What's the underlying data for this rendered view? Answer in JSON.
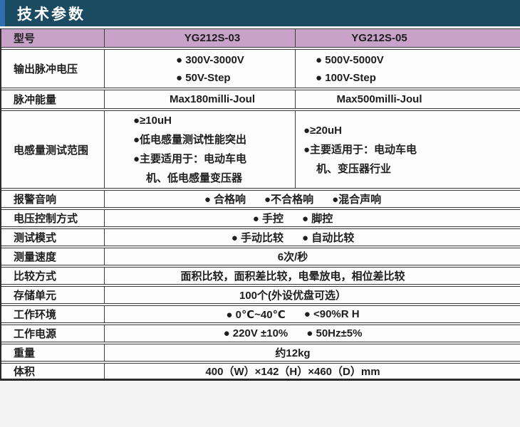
{
  "title": "技术参数",
  "colors": {
    "band": "#1b4b61",
    "accent_stripe": "#2f6fad",
    "model_row_bg": "#c8a2c8",
    "rule": "#3e3e3e"
  },
  "table": {
    "header": {
      "label": "型号",
      "model_a": "YG212S-03",
      "model_b": "YG212S-05"
    },
    "rows": {
      "output_voltage": {
        "label": "输出脉冲电压",
        "a": [
          "● 300V-3000V",
          "● 50V-Step"
        ],
        "b": [
          "● 500V-5000V",
          "● 100V-Step"
        ]
      },
      "pulse_energy": {
        "label": "脉冲能量",
        "a": "Max180milli-Joul",
        "b": "Max500milli-Joul"
      },
      "inductance": {
        "label": "电感量测试范围",
        "a": [
          "●≥10uH",
          "●低电感量测试性能突出",
          "●主要适用于：电动车电",
          "机、低电感量变压器"
        ],
        "b": [
          "●≥20uH",
          "●主要适用于：电动车电",
          "机、变压器行业"
        ]
      },
      "alarm": {
        "label": "报警音响",
        "parts": [
          "● 合格响",
          "●不合格响",
          "●混合声响"
        ]
      },
      "voltage_control": {
        "label": "电压控制方式",
        "parts": [
          "● 手控",
          "● 脚控"
        ]
      },
      "test_mode": {
        "label": "测试模式",
        "parts": [
          "● 手动比较",
          "● 自动比较"
        ]
      },
      "speed": {
        "label": "测量速度",
        "value": "6次/秒"
      },
      "comparison": {
        "label": "比较方式",
        "value": "面积比较，面积差比较，电晕放电，相位差比较"
      },
      "storage": {
        "label": "存储单元",
        "value": "100个(外设优盘可选）"
      },
      "environment": {
        "label": "工作环境",
        "parts": [
          "● 0℃~40℃",
          "● <90%R H"
        ]
      },
      "power": {
        "label": "工作电源",
        "parts": [
          "● 220V ±10%",
          "● 50Hz±5%"
        ]
      },
      "weight": {
        "label": "重量",
        "value": "约12kg"
      },
      "volume": {
        "label": "体积",
        "value": "400（W）×142（H）×460（D）mm"
      }
    }
  }
}
